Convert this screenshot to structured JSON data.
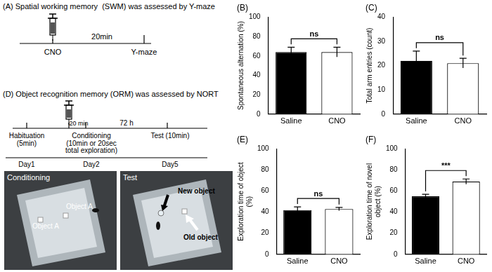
{
  "chart_data": [
    {
      "type": "bar",
      "title": "(B)",
      "ylabel": "Spontaneous alternation (%)",
      "categories": [
        "Saline",
        "CNO"
      ],
      "values": [
        64,
        64
      ],
      "errors": [
        5,
        5
      ],
      "colors": [
        "#000000",
        "#ffffff"
      ],
      "ylim": [
        0,
        100
      ],
      "yticks": [
        0,
        20,
        40,
        60,
        80,
        100
      ],
      "grid": false,
      "annotation": "ns"
    },
    {
      "type": "bar",
      "title": "(C)",
      "ylabel": "Total arm entries (count)",
      "categories": [
        "Saline",
        "CNO"
      ],
      "values": [
        22,
        21
      ],
      "errors": [
        4,
        2
      ],
      "colors": [
        "#000000",
        "#ffffff"
      ],
      "ylim": [
        0,
        40
      ],
      "yticks": [
        0,
        10,
        20,
        30,
        40
      ],
      "grid": false,
      "annotation": "ns"
    },
    {
      "type": "bar",
      "title": "(E)",
      "ylabel": "Exploration time of object (%)",
      "categories": [
        "Saline",
        "CNO"
      ],
      "values": [
        42,
        43
      ],
      "errors": [
        3,
        1.5
      ],
      "colors": [
        "#000000",
        "#ffffff"
      ],
      "ylim": [
        0,
        100
      ],
      "yticks": [
        0,
        20,
        40,
        60,
        80,
        100
      ],
      "grid": false,
      "annotation": "ns"
    },
    {
      "type": "bar",
      "title": "(F)",
      "ylabel": "Exploration time of novel object (%)",
      "categories": [
        "Saline",
        "CNO"
      ],
      "values": [
        55,
        69
      ],
      "errors": [
        2,
        2.5
      ],
      "colors": [
        "#000000",
        "#ffffff"
      ],
      "ylim": [
        0,
        100
      ],
      "yticks": [
        0,
        20,
        40,
        60,
        80,
        100
      ],
      "grid": false,
      "annotation": "***"
    }
  ],
  "diagrams": {
    "A": {
      "title": "(A) Spatial working memory  (SWM) was assessed by Y-maze",
      "injection": "CNO",
      "interval": "20min",
      "task": "Y-maze"
    },
    "D": {
      "title": "(D) Object recognition memory (ORM) was assessed by NORT",
      "steps": [
        {
          "label": "Habituation",
          "detail": [
            "(5min)"
          ],
          "day": "Day1"
        },
        {
          "label": "Conditioning",
          "detail": [
            "(10min or 20sec",
            "total exploration)"
          ],
          "day": "Day2"
        },
        {
          "label": "Test (10min)",
          "detail": [],
          "day": "Day5"
        }
      ],
      "intervals": [
        "20 min",
        "72 h"
      ]
    },
    "photos": [
      {
        "caption": "Conditioning",
        "objects": [
          "Object A",
          "Object A"
        ]
      },
      {
        "caption": "Test",
        "objects": [
          "New object",
          "Old object"
        ]
      }
    ]
  }
}
